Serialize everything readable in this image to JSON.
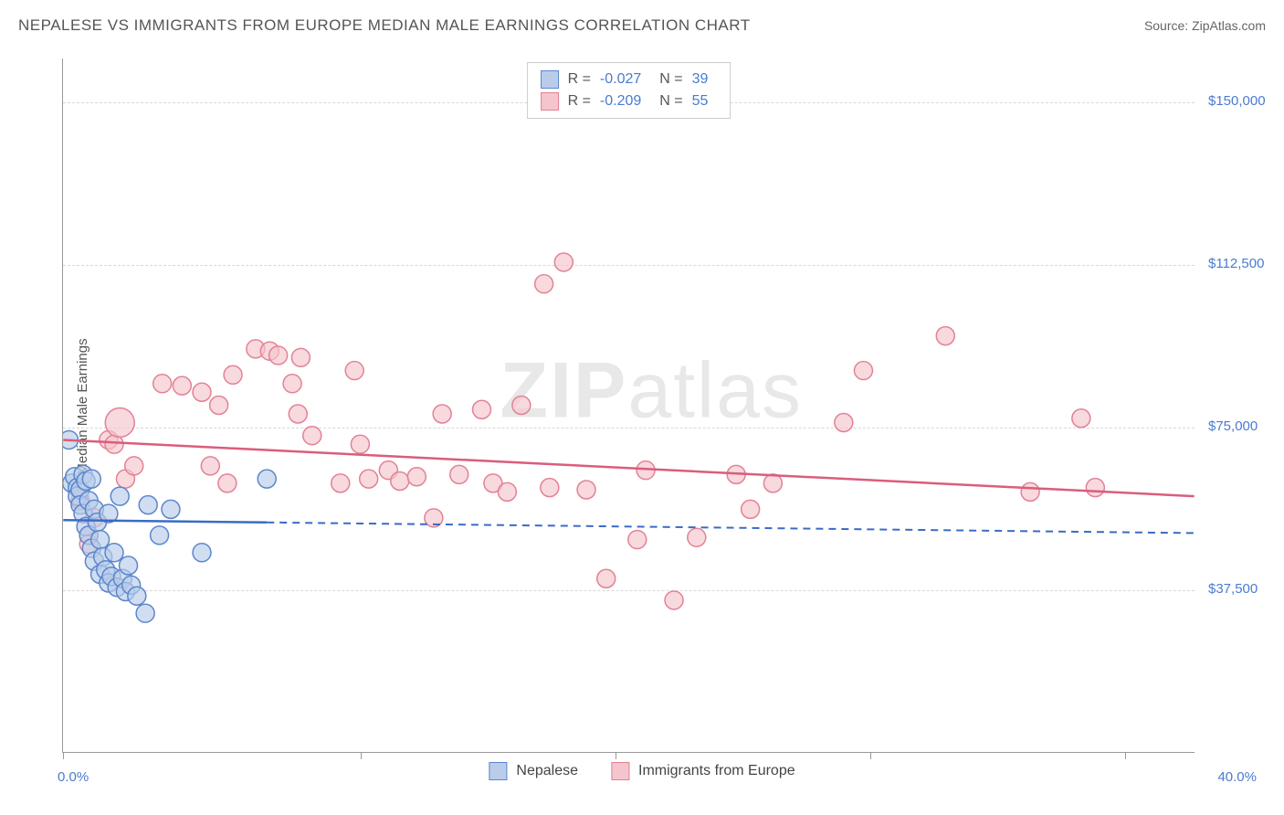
{
  "header": {
    "title": "NEPALESE VS IMMIGRANTS FROM EUROPE MEDIAN MALE EARNINGS CORRELATION CHART",
    "source_prefix": "Source: ",
    "source_name": "ZipAtlas.com"
  },
  "ylabel": "Median Male Earnings",
  "watermark": {
    "bold": "ZIP",
    "rest": "atlas"
  },
  "chart": {
    "type": "scatter",
    "background_color": "#ffffff",
    "grid_color": "#d8d8d8",
    "axis_color": "#999999",
    "label_color": "#4a7bd0",
    "xlim": [
      0,
      40
    ],
    "ylim": [
      0,
      160000
    ],
    "y_gridlines": [
      37500,
      75000,
      112500,
      150000
    ],
    "y_tick_labels": [
      "$37,500",
      "$75,000",
      "$112,500",
      "$150,000"
    ],
    "x_ticks_pct": [
      0,
      10.5,
      19.5,
      28.5,
      37.5
    ],
    "x_min_label": "0.0%",
    "x_max_label": "40.0%",
    "marker_radius": 10,
    "marker_stroke_width": 1.5,
    "trend_line_width": 2.5
  },
  "series": [
    {
      "name": "Nepalese",
      "fill": "#b9cdea",
      "stroke": "#5b86cd",
      "line_color": "#3b6bc5",
      "R": "-0.027",
      "N": "39",
      "trend": {
        "x1": 0,
        "y1": 53500,
        "x2": 40,
        "y2": 50500,
        "solid_until_x": 7.2
      },
      "points": [
        {
          "x": 0.2,
          "y": 72000
        },
        {
          "x": 0.3,
          "y": 62000
        },
        {
          "x": 0.4,
          "y": 63500
        },
        {
          "x": 0.5,
          "y": 61000
        },
        {
          "x": 0.5,
          "y": 59000
        },
        {
          "x": 0.6,
          "y": 60500
        },
        {
          "x": 0.6,
          "y": 57000
        },
        {
          "x": 0.7,
          "y": 64000
        },
        {
          "x": 0.7,
          "y": 55000
        },
        {
          "x": 0.8,
          "y": 62500
        },
        {
          "x": 0.8,
          "y": 52000
        },
        {
          "x": 0.9,
          "y": 58000
        },
        {
          "x": 0.9,
          "y": 50000
        },
        {
          "x": 1.0,
          "y": 63000
        },
        {
          "x": 1.0,
          "y": 47000
        },
        {
          "x": 1.1,
          "y": 56000
        },
        {
          "x": 1.1,
          "y": 44000
        },
        {
          "x": 1.2,
          "y": 53000
        },
        {
          "x": 1.3,
          "y": 49000
        },
        {
          "x": 1.3,
          "y": 41000
        },
        {
          "x": 1.4,
          "y": 45000
        },
        {
          "x": 1.5,
          "y": 42000
        },
        {
          "x": 1.6,
          "y": 39000
        },
        {
          "x": 1.7,
          "y": 40500
        },
        {
          "x": 1.8,
          "y": 46000
        },
        {
          "x": 1.9,
          "y": 38000
        },
        {
          "x": 2.0,
          "y": 59000
        },
        {
          "x": 2.1,
          "y": 40000
        },
        {
          "x": 2.2,
          "y": 37000
        },
        {
          "x": 2.4,
          "y": 38500
        },
        {
          "x": 2.6,
          "y": 36000
        },
        {
          "x": 2.9,
          "y": 32000
        },
        {
          "x": 3.0,
          "y": 57000
        },
        {
          "x": 3.4,
          "y": 50000
        },
        {
          "x": 3.8,
          "y": 56000
        },
        {
          "x": 4.9,
          "y": 46000
        },
        {
          "x": 7.2,
          "y": 63000
        },
        {
          "x": 1.6,
          "y": 55000
        },
        {
          "x": 2.3,
          "y": 43000
        }
      ]
    },
    {
      "name": "Immigrants from Europe",
      "fill": "#f4c5cd",
      "stroke": "#e28294",
      "line_color": "#da5d7c",
      "R": "-0.209",
      "N": "55",
      "trend": {
        "x1": 0,
        "y1": 72000,
        "x2": 40,
        "y2": 59000,
        "solid_until_x": 40
      },
      "points": [
        {
          "x": 0.6,
          "y": 58000
        },
        {
          "x": 0.9,
          "y": 50000
        },
        {
          "x": 0.9,
          "y": 48000
        },
        {
          "x": 1.1,
          "y": 54000
        },
        {
          "x": 1.6,
          "y": 72000
        },
        {
          "x": 1.8,
          "y": 71000
        },
        {
          "x": 2.0,
          "y": 76000,
          "r": 16
        },
        {
          "x": 2.2,
          "y": 63000
        },
        {
          "x": 2.5,
          "y": 66000
        },
        {
          "x": 3.5,
          "y": 85000
        },
        {
          "x": 4.2,
          "y": 84500
        },
        {
          "x": 4.9,
          "y": 83000
        },
        {
          "x": 5.2,
          "y": 66000
        },
        {
          "x": 5.5,
          "y": 80000
        },
        {
          "x": 5.8,
          "y": 62000
        },
        {
          "x": 6.0,
          "y": 87000
        },
        {
          "x": 6.8,
          "y": 93000
        },
        {
          "x": 7.3,
          "y": 92500
        },
        {
          "x": 7.6,
          "y": 91500
        },
        {
          "x": 8.1,
          "y": 85000
        },
        {
          "x": 8.3,
          "y": 78000
        },
        {
          "x": 8.4,
          "y": 91000
        },
        {
          "x": 8.8,
          "y": 73000
        },
        {
          "x": 9.8,
          "y": 62000
        },
        {
          "x": 10.3,
          "y": 88000
        },
        {
          "x": 10.5,
          "y": 71000
        },
        {
          "x": 10.8,
          "y": 63000
        },
        {
          "x": 11.5,
          "y": 65000
        },
        {
          "x": 11.9,
          "y": 62500
        },
        {
          "x": 12.5,
          "y": 63500
        },
        {
          "x": 13.1,
          "y": 54000
        },
        {
          "x": 13.4,
          "y": 78000
        },
        {
          "x": 14.0,
          "y": 64000
        },
        {
          "x": 14.8,
          "y": 79000
        },
        {
          "x": 15.2,
          "y": 62000
        },
        {
          "x": 15.7,
          "y": 60000
        },
        {
          "x": 16.2,
          "y": 80000
        },
        {
          "x": 17.0,
          "y": 108000
        },
        {
          "x": 17.2,
          "y": 61000
        },
        {
          "x": 17.7,
          "y": 113000
        },
        {
          "x": 18.5,
          "y": 60500
        },
        {
          "x": 19.2,
          "y": 40000
        },
        {
          "x": 20.3,
          "y": 49000
        },
        {
          "x": 20.6,
          "y": 65000
        },
        {
          "x": 21.6,
          "y": 35000
        },
        {
          "x": 22.4,
          "y": 49500
        },
        {
          "x": 23.8,
          "y": 64000
        },
        {
          "x": 24.3,
          "y": 56000
        },
        {
          "x": 25.1,
          "y": 62000
        },
        {
          "x": 27.6,
          "y": 76000
        },
        {
          "x": 28.3,
          "y": 88000
        },
        {
          "x": 31.2,
          "y": 96000
        },
        {
          "x": 34.2,
          "y": 60000
        },
        {
          "x": 36.0,
          "y": 77000
        },
        {
          "x": 36.5,
          "y": 61000
        }
      ]
    }
  ],
  "legend_bottom": [
    {
      "label": "Nepalese",
      "fill": "#b9cdea",
      "stroke": "#5b86cd"
    },
    {
      "label": "Immigrants from Europe",
      "fill": "#f4c5cd",
      "stroke": "#e28294"
    }
  ]
}
